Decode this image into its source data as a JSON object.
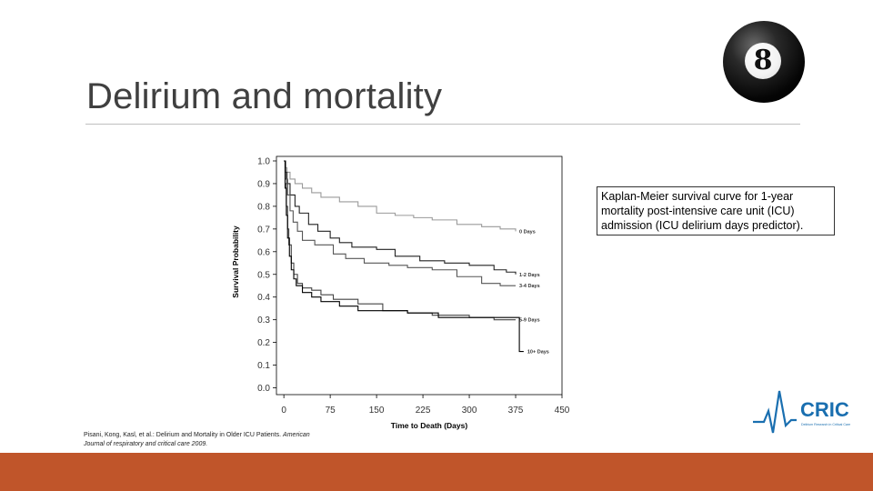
{
  "slide": {
    "title": "Delirium and mortality",
    "caption": "Kaplan-Meier survival curve for 1-year mortality post-intensive care unit (ICU) admission (ICU delirium days predictor).",
    "citation_authors": "Pisani, Kong, Kasl, et al.: Delirium and Mortality in Older ICU Patients. ",
    "citation_journal": "American Journal of respiratory and critical care 2009.",
    "ball_number": "8",
    "logo_text": "CRIC",
    "logo_tagline": "Delirium Research in Critical Care",
    "accent_color": "#c0552a",
    "logo_color": "#1a6fb0"
  },
  "chart_data": {
    "type": "line",
    "xlabel": "Time to Death (Days)",
    "ylabel": "Survival Probability",
    "xlim": [
      -12,
      450
    ],
    "ylim": [
      -0.03,
      1.02
    ],
    "x_ticks": [
      "0",
      "75",
      "150",
      "225",
      "300",
      "375",
      "450"
    ],
    "y_ticks": [
      "0.0",
      "0.1",
      "0.2",
      "0.3",
      "0.4",
      "0.5",
      "0.6",
      "0.7",
      "0.8",
      "0.9",
      "1.0"
    ],
    "grid": false,
    "series": [
      {
        "name": "0 Days",
        "color": "#9a9a9a",
        "points": [
          [
            0,
            1.0
          ],
          [
            2,
            0.97
          ],
          [
            5,
            0.95
          ],
          [
            10,
            0.92
          ],
          [
            18,
            0.9
          ],
          [
            30,
            0.88
          ],
          [
            45,
            0.86
          ],
          [
            60,
            0.84
          ],
          [
            90,
            0.82
          ],
          [
            120,
            0.8
          ],
          [
            150,
            0.77
          ],
          [
            180,
            0.76
          ],
          [
            210,
            0.75
          ],
          [
            240,
            0.74
          ],
          [
            280,
            0.72
          ],
          [
            320,
            0.71
          ],
          [
            350,
            0.7
          ],
          [
            375,
            0.69
          ]
        ]
      },
      {
        "name": "1-2 Days",
        "color": "#222222",
        "points": [
          [
            0,
            1.0
          ],
          [
            2,
            0.95
          ],
          [
            5,
            0.9
          ],
          [
            10,
            0.85
          ],
          [
            18,
            0.8
          ],
          [
            25,
            0.77
          ],
          [
            40,
            0.72
          ],
          [
            55,
            0.69
          ],
          [
            75,
            0.66
          ],
          [
            90,
            0.64
          ],
          [
            110,
            0.62
          ],
          [
            150,
            0.61
          ],
          [
            180,
            0.58
          ],
          [
            220,
            0.56
          ],
          [
            260,
            0.55
          ],
          [
            300,
            0.54
          ],
          [
            340,
            0.52
          ],
          [
            360,
            0.51
          ],
          [
            375,
            0.5
          ]
        ]
      },
      {
        "name": "3-4 Days",
        "color": "#555555",
        "points": [
          [
            0,
            1.0
          ],
          [
            3,
            0.92
          ],
          [
            6,
            0.85
          ],
          [
            10,
            0.78
          ],
          [
            15,
            0.73
          ],
          [
            22,
            0.69
          ],
          [
            30,
            0.65
          ],
          [
            50,
            0.63
          ],
          [
            80,
            0.59
          ],
          [
            100,
            0.57
          ],
          [
            130,
            0.55
          ],
          [
            170,
            0.54
          ],
          [
            200,
            0.53
          ],
          [
            240,
            0.52
          ],
          [
            280,
            0.49
          ],
          [
            320,
            0.46
          ],
          [
            350,
            0.45
          ],
          [
            375,
            0.45
          ]
        ]
      },
      {
        "name": "5-9 Days",
        "color": "#444444",
        "points": [
          [
            0,
            1.0
          ],
          [
            2,
            0.9
          ],
          [
            4,
            0.8
          ],
          [
            6,
            0.7
          ],
          [
            8,
            0.63
          ],
          [
            12,
            0.55
          ],
          [
            16,
            0.5
          ],
          [
            22,
            0.46
          ],
          [
            30,
            0.44
          ],
          [
            45,
            0.43
          ],
          [
            60,
            0.41
          ],
          [
            80,
            0.39
          ],
          [
            120,
            0.37
          ],
          [
            160,
            0.34
          ],
          [
            200,
            0.33
          ],
          [
            240,
            0.32
          ],
          [
            300,
            0.31
          ],
          [
            340,
            0.3
          ],
          [
            375,
            0.3
          ]
        ]
      },
      {
        "name": "10+ Days",
        "color": "#000000",
        "points": [
          [
            0,
            1.0
          ],
          [
            2,
            0.88
          ],
          [
            4,
            0.76
          ],
          [
            6,
            0.66
          ],
          [
            9,
            0.58
          ],
          [
            12,
            0.52
          ],
          [
            16,
            0.48
          ],
          [
            20,
            0.45
          ],
          [
            30,
            0.42
          ],
          [
            45,
            0.4
          ],
          [
            60,
            0.38
          ],
          [
            90,
            0.36
          ],
          [
            120,
            0.34
          ],
          [
            150,
            0.34
          ],
          [
            200,
            0.33
          ],
          [
            250,
            0.31
          ],
          [
            330,
            0.31
          ],
          [
            380,
            0.31
          ],
          [
            381,
            0.16
          ],
          [
            388,
            0.16
          ]
        ]
      }
    ]
  }
}
